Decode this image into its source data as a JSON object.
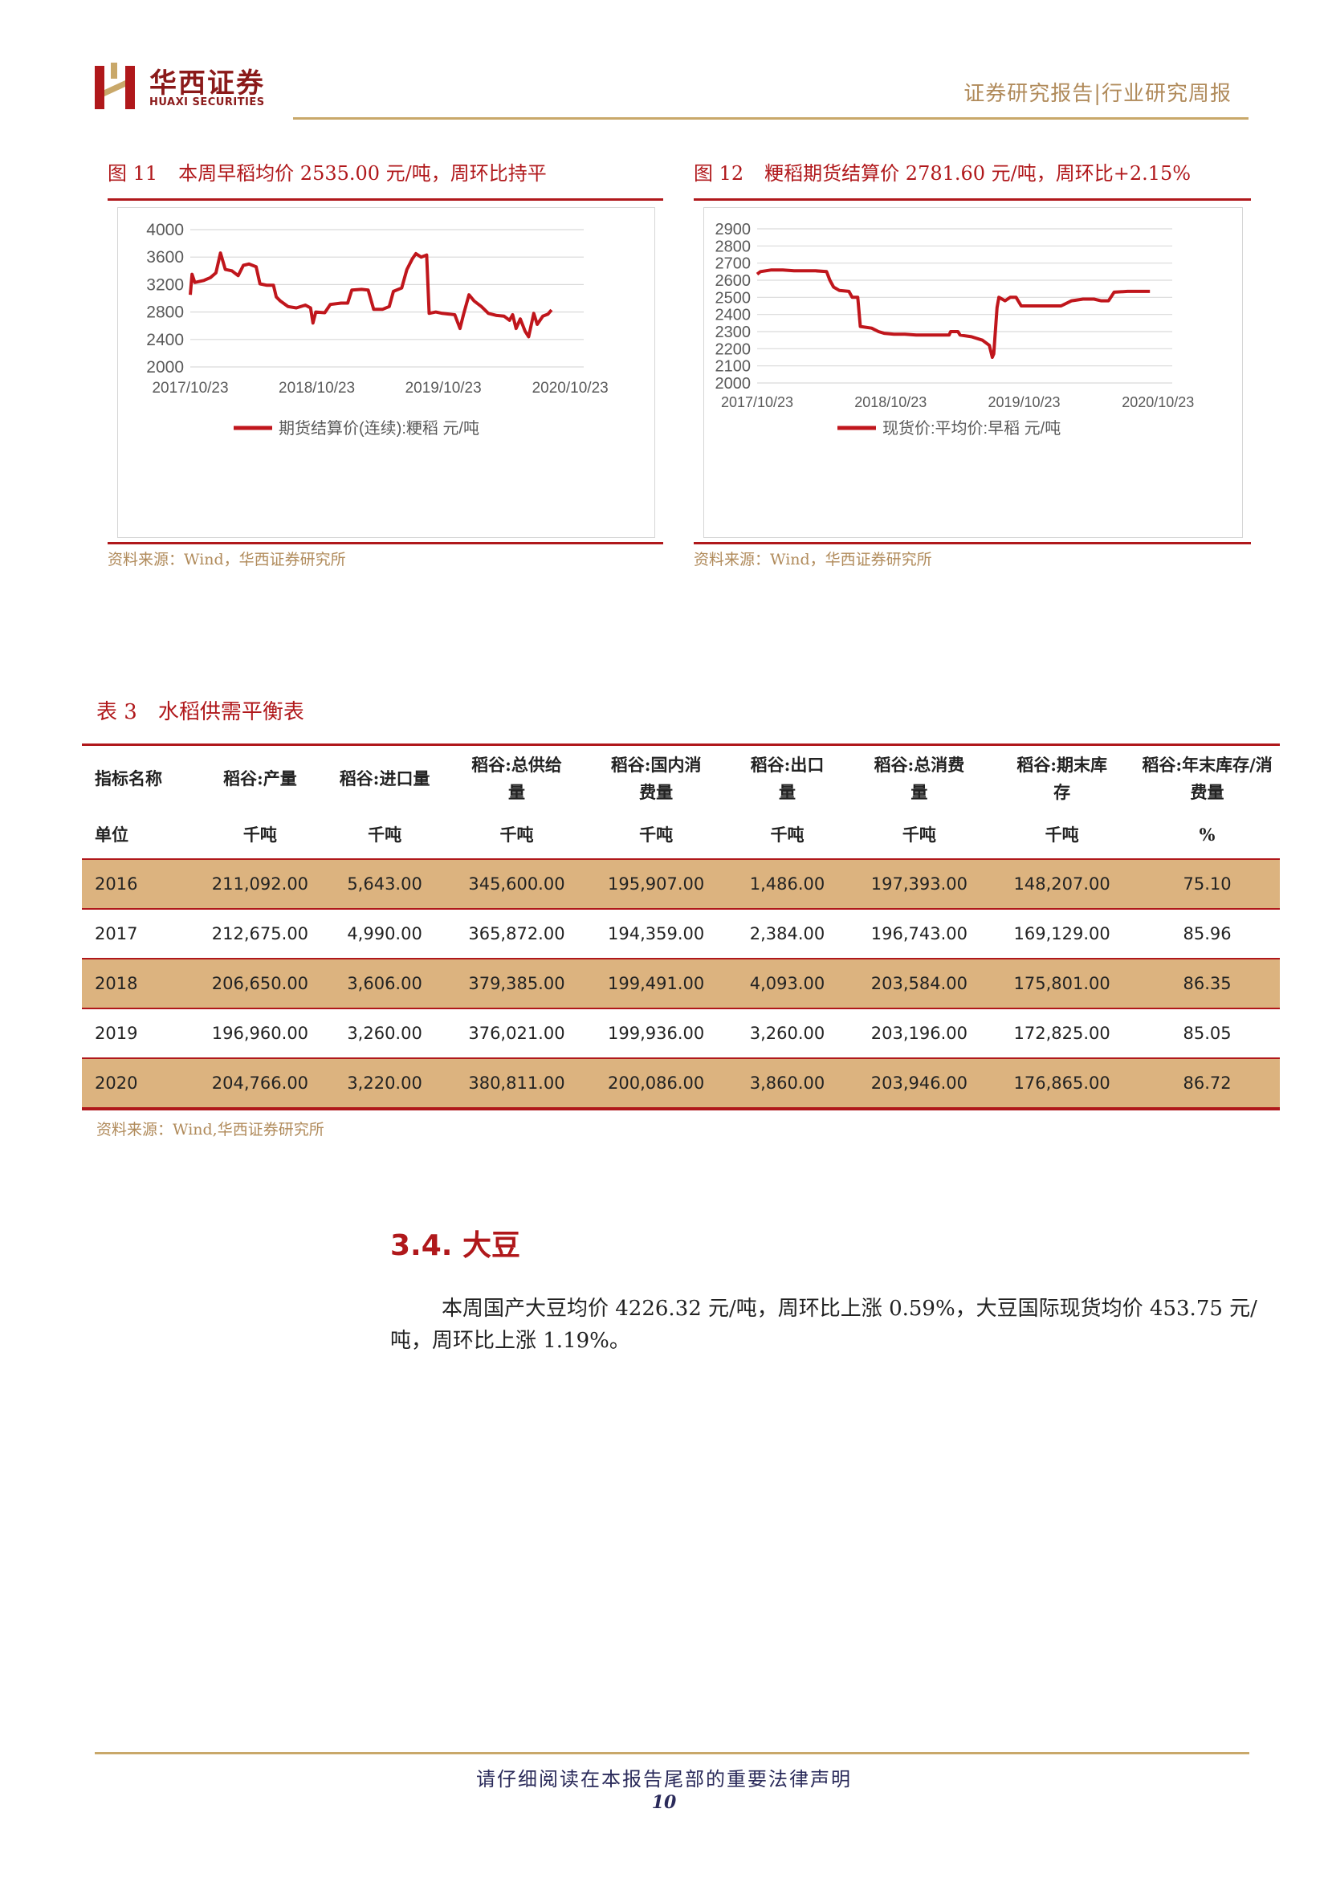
{
  "header": {
    "logo_cn": "华西证券",
    "logo_en": "HUAXI SECURITIES",
    "report_type": "证券研究报告|行业研究周报"
  },
  "figures": [
    {
      "num": "图 11",
      "title": "本周早稻均价 2535.00 元/吨，周环比持平",
      "source": "资料来源：Wind，华西证券研究所",
      "legend": "期货结算价(连续):粳稻 元/吨",
      "x_ticks": [
        "2017/10/23",
        "2018/10/23",
        "2019/10/23",
        "2020/10/23"
      ],
      "y_ticks": [
        "4000",
        "3600",
        "3200",
        "2800",
        "2400",
        "2000"
      ]
    },
    {
      "num": "图 12",
      "title": "粳稻期货结算价 2781.60 元/吨，周环比+2.15%",
      "source": "资料来源：Wind，华西证券研究所",
      "legend": "现货价:平均价:早稻 元/吨",
      "x_ticks": [
        "2017/10/23",
        "2018/10/23",
        "2019/10/23",
        "2020/10/23"
      ],
      "y_ticks": [
        "2900",
        "2800",
        "2700",
        "2600",
        "2500",
        "2400",
        "2300",
        "2200",
        "2100",
        "2000"
      ]
    }
  ],
  "chart_data": [
    {
      "type": "line",
      "title": "",
      "xlabel": "",
      "ylabel": "",
      "ylim": [
        2000,
        4000
      ],
      "xlim": [
        "2017/10/23",
        "2020/12/01"
      ],
      "legend_position": "bottom",
      "grid": true,
      "color": "#c0161c",
      "series": [
        {
          "name": "期货结算价(连续):粳稻 元/吨",
          "points": [
            [
              "2017-10-23",
              3050
            ],
            [
              "2017-10-28",
              3350
            ],
            [
              "2017-11-05",
              3230
            ],
            [
              "2017-12-01",
              3260
            ],
            [
              "2017-12-20",
              3300
            ],
            [
              "2018-01-05",
              3370
            ],
            [
              "2018-01-18",
              3660
            ],
            [
              "2018-02-01",
              3420
            ],
            [
              "2018-02-20",
              3400
            ],
            [
              "2018-03-10",
              3330
            ],
            [
              "2018-03-25",
              3480
            ],
            [
              "2018-04-10",
              3500
            ],
            [
              "2018-05-01",
              3460
            ],
            [
              "2018-05-12",
              3210
            ],
            [
              "2018-06-01",
              3190
            ],
            [
              "2018-06-20",
              3190
            ],
            [
              "2018-06-28",
              3020
            ],
            [
              "2018-07-10",
              2960
            ],
            [
              "2018-08-01",
              2880
            ],
            [
              "2018-08-25",
              2860
            ],
            [
              "2018-09-20",
              2900
            ],
            [
              "2018-10-05",
              2860
            ],
            [
              "2018-10-12",
              2640
            ],
            [
              "2018-10-20",
              2800
            ],
            [
              "2018-11-15",
              2790
            ],
            [
              "2018-12-01",
              2910
            ],
            [
              "2019-01-01",
              2930
            ],
            [
              "2019-01-20",
              2930
            ],
            [
              "2019-02-01",
              3120
            ],
            [
              "2019-03-01",
              3130
            ],
            [
              "2019-03-20",
              3120
            ],
            [
              "2019-04-05",
              2840
            ],
            [
              "2019-05-01",
              2840
            ],
            [
              "2019-05-20",
              2880
            ],
            [
              "2019-06-01",
              3100
            ],
            [
              "2019-06-25",
              3150
            ],
            [
              "2019-07-10",
              3420
            ],
            [
              "2019-07-25",
              3570
            ],
            [
              "2019-08-05",
              3650
            ],
            [
              "2019-08-20",
              3600
            ],
            [
              "2019-09-05",
              3630
            ],
            [
              "2019-09-12",
              2780
            ],
            [
              "2019-10-01",
              2800
            ],
            [
              "2019-10-20",
              2780
            ],
            [
              "2019-11-10",
              2770
            ],
            [
              "2019-11-25",
              2760
            ],
            [
              "2019-12-10",
              2560
            ],
            [
              "2019-12-20",
              2760
            ],
            [
              "2020-01-05",
              3050
            ],
            [
              "2020-01-20",
              2960
            ],
            [
              "2020-02-10",
              2880
            ],
            [
              "2020-03-01",
              2780
            ],
            [
              "2020-03-25",
              2750
            ],
            [
              "2020-04-15",
              2740
            ],
            [
              "2020-05-01",
              2680
            ],
            [
              "2020-05-10",
              2760
            ],
            [
              "2020-05-20",
              2560
            ],
            [
              "2020-06-01",
              2700
            ],
            [
              "2020-06-15",
              2520
            ],
            [
              "2020-06-25",
              2440
            ],
            [
              "2020-07-10",
              2780
            ],
            [
              "2020-07-20",
              2620
            ],
            [
              "2020-08-05",
              2740
            ],
            [
              "2020-08-20",
              2770
            ],
            [
              "2020-08-30",
              2830
            ]
          ]
        }
      ]
    },
    {
      "type": "line",
      "title": "",
      "xlabel": "",
      "ylabel": "",
      "ylim": [
        2000,
        2900
      ],
      "xlim": [
        "2017/10/23",
        "2020/12/01"
      ],
      "legend_position": "bottom",
      "grid": true,
      "color": "#c0161c",
      "series": [
        {
          "name": "现货价:平均价:早稻 元/吨",
          "points": [
            [
              "2017-10-23",
              2635
            ],
            [
              "2017-11-01",
              2650
            ],
            [
              "2017-12-01",
              2660
            ],
            [
              "2018-01-01",
              2660
            ],
            [
              "2018-02-01",
              2655
            ],
            [
              "2018-03-01",
              2655
            ],
            [
              "2018-04-01",
              2655
            ],
            [
              "2018-05-01",
              2650
            ],
            [
              "2018-05-10",
              2600
            ],
            [
              "2018-05-20",
              2560
            ],
            [
              "2018-06-05",
              2540
            ],
            [
              "2018-07-01",
              2535
            ],
            [
              "2018-07-10",
              2500
            ],
            [
              "2018-07-25",
              2500
            ],
            [
              "2018-08-01",
              2330
            ],
            [
              "2018-09-01",
              2320
            ],
            [
              "2018-09-20",
              2300
            ],
            [
              "2018-10-05",
              2290
            ],
            [
              "2018-11-01",
              2285
            ],
            [
              "2018-12-01",
              2285
            ],
            [
              "2019-01-01",
              2280
            ],
            [
              "2019-02-01",
              2280
            ],
            [
              "2019-03-01",
              2280
            ],
            [
              "2019-04-01",
              2280
            ],
            [
              "2019-04-05",
              2300
            ],
            [
              "2019-04-25",
              2300
            ],
            [
              "2019-05-01",
              2280
            ],
            [
              "2019-06-01",
              2270
            ],
            [
              "2019-07-01",
              2250
            ],
            [
              "2019-07-20",
              2220
            ],
            [
              "2019-07-28",
              2150
            ],
            [
              "2019-08-01",
              2170
            ],
            [
              "2019-08-10",
              2440
            ],
            [
              "2019-08-15",
              2500
            ],
            [
              "2019-09-01",
              2480
            ],
            [
              "2019-09-15",
              2500
            ],
            [
              "2019-10-01",
              2500
            ],
            [
              "2019-10-15",
              2450
            ],
            [
              "2019-11-15",
              2450
            ],
            [
              "2019-12-15",
              2450
            ],
            [
              "2020-01-15",
              2450
            ],
            [
              "2020-02-01",
              2450
            ],
            [
              "2020-03-01",
              2480
            ],
            [
              "2020-04-01",
              2490
            ],
            [
              "2020-05-01",
              2490
            ],
            [
              "2020-05-20",
              2480
            ],
            [
              "2020-06-10",
              2480
            ],
            [
              "2020-06-25",
              2530
            ],
            [
              "2020-08-01",
              2535
            ],
            [
              "2020-09-01",
              2535
            ],
            [
              "2020-10-01",
              2535
            ]
          ]
        }
      ]
    }
  ],
  "table": {
    "num": "表 3",
    "title": "水稻供需平衡表",
    "headers": [
      "指标名称",
      "稻谷:产量",
      "稻谷:进口量",
      "稻谷:总供给量",
      "稻谷:国内消费量",
      "稻谷:出口量",
      "稻谷:总消费量",
      "稻谷:期末库存",
      "稻谷:年末库存/消费量"
    ],
    "units": [
      "单位",
      "千吨",
      "千吨",
      "千吨",
      "千吨",
      "千吨",
      "千吨",
      "千吨",
      "%"
    ],
    "rows": [
      [
        "2016",
        "211,092.00",
        "5,643.00",
        "345,600.00",
        "195,907.00",
        "1,486.00",
        "197,393.00",
        "148,207.00",
        "75.10"
      ],
      [
        "2017",
        "212,675.00",
        "4,990.00",
        "365,872.00",
        "194,359.00",
        "2,384.00",
        "196,743.00",
        "169,129.00",
        "85.96"
      ],
      [
        "2018",
        "206,650.00",
        "3,606.00",
        "379,385.00",
        "199,491.00",
        "4,093.00",
        "203,584.00",
        "175,801.00",
        "86.35"
      ],
      [
        "2019",
        "196,960.00",
        "3,260.00",
        "376,021.00",
        "199,936.00",
        "3,260.00",
        "203,196.00",
        "172,825.00",
        "85.05"
      ],
      [
        "2020",
        "204,766.00",
        "3,220.00",
        "380,811.00",
        "200,086.00",
        "3,860.00",
        "203,946.00",
        "176,865.00",
        "86.72"
      ]
    ],
    "source": "资料来源：Wind,华西证券研究所"
  },
  "section": {
    "title": "3.4. 大豆",
    "paragraph": "本周国产大豆均价 4226.32 元/吨，周环比上涨 0.59%，大豆国际现货均价 453.75 元/吨，周环比上涨 1.19%。"
  },
  "footer": {
    "notice": "请仔细阅读在本报告尾部的重要法律声明",
    "page": "10"
  }
}
